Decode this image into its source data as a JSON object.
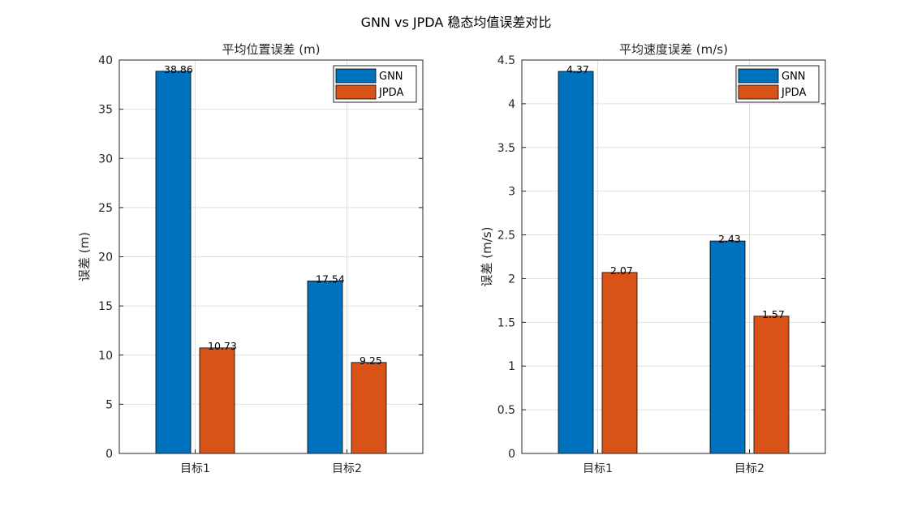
{
  "figure": {
    "title": "GNN vs JPDA 稳态均值误差对比"
  },
  "chart_data": [
    {
      "type": "bar",
      "title": "平均位置误差 (m)",
      "xlabel": "",
      "ylabel": "误差 (m)",
      "categories": [
        "目标1",
        "目标2"
      ],
      "series": [
        {
          "name": "GNN",
          "values": [
            38.86,
            17.54
          ],
          "labels": [
            "38.86",
            "17.54"
          ]
        },
        {
          "name": "JPDA",
          "values": [
            10.73,
            9.25
          ],
          "labels": [
            "10.73",
            "9.25"
          ]
        }
      ],
      "ylim": [
        0,
        40
      ],
      "yticks": [
        0,
        5,
        10,
        15,
        20,
        25,
        30,
        35,
        40
      ],
      "ytick_labels": [
        "0",
        "5",
        "10",
        "15",
        "20",
        "25",
        "30",
        "35",
        "40"
      ],
      "grid": true,
      "legend_position": "top-right"
    },
    {
      "type": "bar",
      "title": "平均速度误差 (m/s)",
      "xlabel": "",
      "ylabel": "误差 (m/s)",
      "categories": [
        "目标1",
        "目标2"
      ],
      "series": [
        {
          "name": "GNN",
          "values": [
            4.37,
            2.43
          ],
          "labels": [
            "4.37",
            "2.43"
          ]
        },
        {
          "name": "JPDA",
          "values": [
            2.07,
            1.57
          ],
          "labels": [
            "2.07",
            "1.57"
          ]
        }
      ],
      "ylim": [
        0,
        4.5
      ],
      "yticks": [
        0,
        0.5,
        1,
        1.5,
        2,
        2.5,
        3,
        3.5,
        4,
        4.5
      ],
      "ytick_labels": [
        "0",
        "0.5",
        "1",
        "1.5",
        "2",
        "2.5",
        "3",
        "3.5",
        "4",
        "4.5"
      ],
      "grid": true,
      "legend_position": "top-right"
    }
  ],
  "colors": {
    "GNN": "#0072BD",
    "JPDA": "#D95319"
  }
}
